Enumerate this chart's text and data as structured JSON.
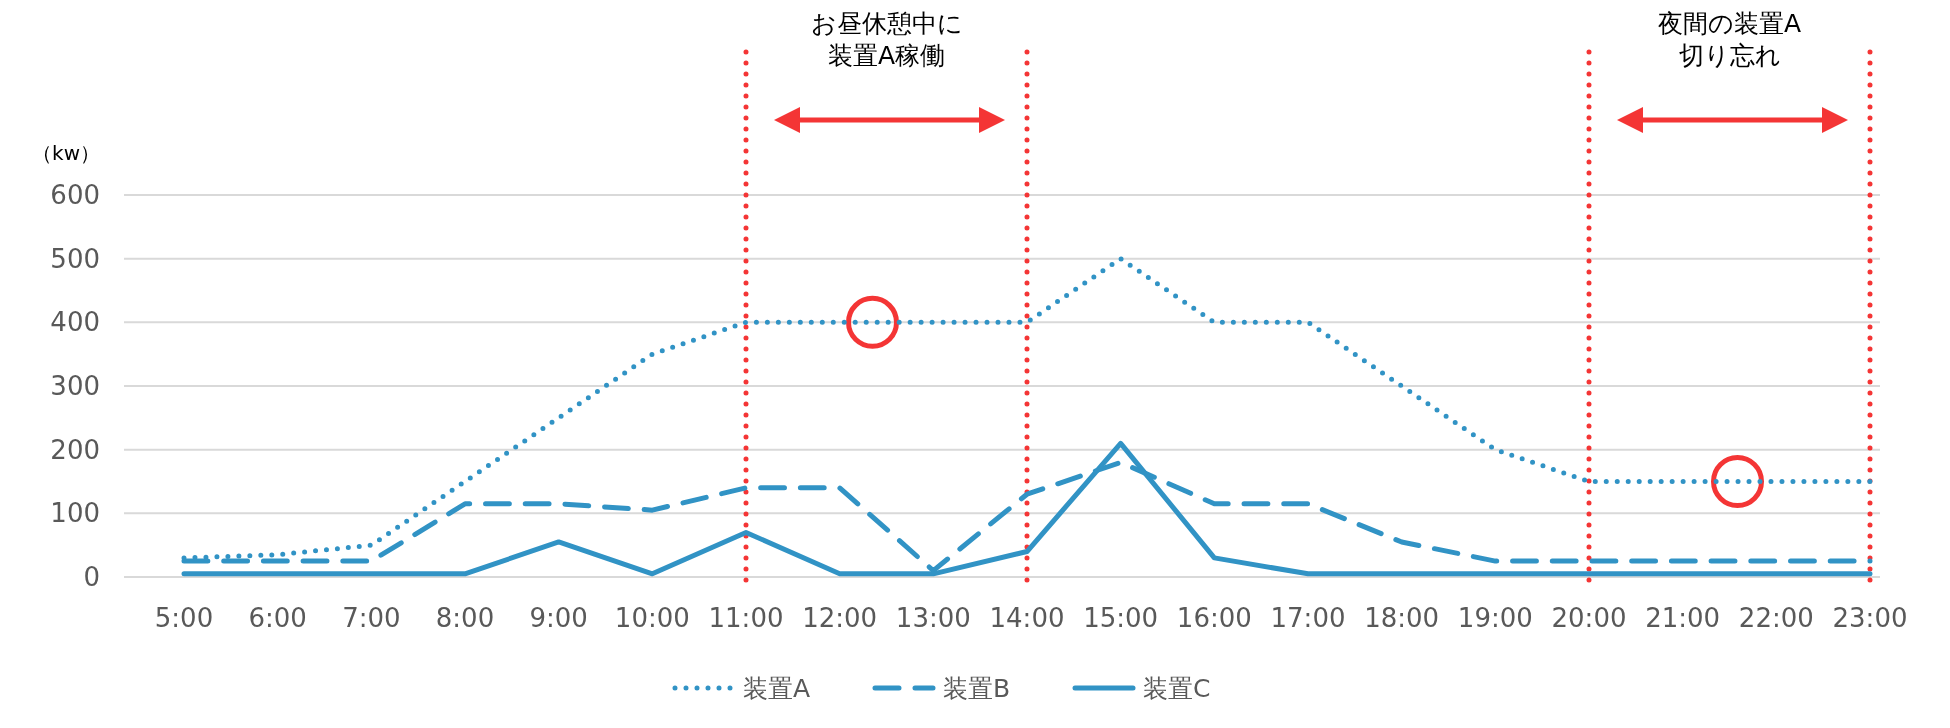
{
  "chart_data": {
    "type": "line",
    "ylabel": "（kw）",
    "categories": [
      "5:00",
      "6:00",
      "7:00",
      "8:00",
      "9:00",
      "10:00",
      "11:00",
      "12:00",
      "13:00",
      "14:00",
      "15:00",
      "16:00",
      "17:00",
      "18:00",
      "19:00",
      "20:00",
      "21:00",
      "22:00",
      "23:00"
    ],
    "series": [
      {
        "name": "装置A",
        "color": "#3193c5",
        "line_style": "dotted",
        "values": [
          30,
          35,
          50,
          150,
          250,
          350,
          400,
          400,
          400,
          400,
          500,
          400,
          400,
          300,
          200,
          150,
          150,
          150,
          150
        ]
      },
      {
        "name": "装置B",
        "color": "#3193c5",
        "line_style": "dashed",
        "values": [
          25,
          25,
          25,
          115,
          115,
          105,
          140,
          140,
          10,
          130,
          180,
          115,
          115,
          55,
          25,
          25,
          25,
          25,
          25
        ]
      },
      {
        "name": "装置C",
        "color": "#3193c5",
        "line_style": "solid",
        "values": [
          5,
          5,
          5,
          5,
          55,
          5,
          70,
          5,
          5,
          40,
          210,
          30,
          5,
          5,
          5,
          5,
          5,
          5,
          5
        ]
      }
    ],
    "ylim": [
      0,
      600
    ],
    "yticks": [
      0,
      100,
      200,
      300,
      400,
      500,
      600
    ],
    "grid": "y",
    "legend": "bottom",
    "ref_lines": [
      {
        "axis": "x",
        "value": "11:00",
        "color": "#f43535",
        "line_style": "dotted"
      },
      {
        "axis": "x",
        "value": "14:00",
        "color": "#f43535",
        "line_style": "dotted"
      },
      {
        "axis": "x",
        "value": "20:00",
        "color": "#f43535",
        "line_style": "dotted"
      },
      {
        "axis": "x",
        "value": "23:00",
        "color": "#f43535",
        "line_style": "dotted"
      }
    ],
    "annotations": [
      "お昼休憩中に装置A稼働",
      "夜間の装置A切り忘れ"
    ]
  }
}
